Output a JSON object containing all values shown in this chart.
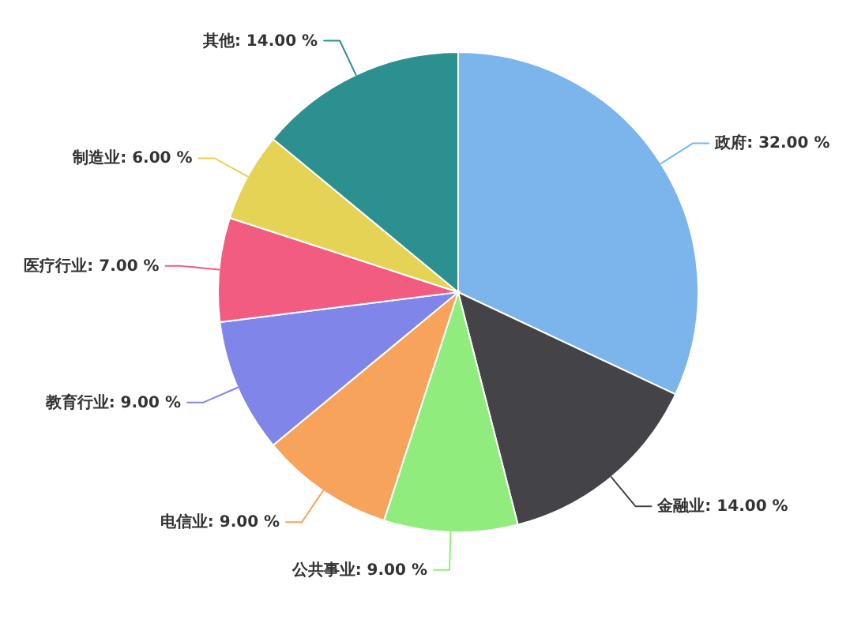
{
  "chart_data": {
    "type": "pie",
    "categories": [
      "政府",
      "金融业",
      "公共事业",
      "电信业",
      "教育行业",
      "医疗行业",
      "制造业",
      "其他"
    ],
    "values": [
      32,
      14,
      9,
      9,
      9,
      7,
      6,
      14
    ],
    "colors": [
      "#7cb5ec",
      "#434348",
      "#90ed7d",
      "#f7a35c",
      "#8085e9",
      "#f15c80",
      "#e4d354",
      "#2b908f"
    ],
    "value_labels": [
      "32.00 %",
      "14.00 %",
      "9.00 %",
      "9.00 %",
      "9.00 %",
      "7.00 %",
      "6.00 %",
      "14.00 %"
    ]
  }
}
